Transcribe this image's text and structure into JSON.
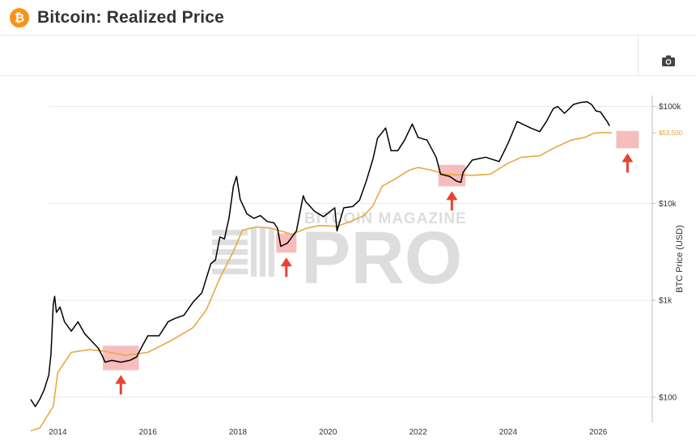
{
  "header": {
    "title": "Bitcoin: Realized Price",
    "logo_glyph": "₿",
    "logo_color": "#f7931a"
  },
  "toolbar": {
    "camera_icon": "camera-icon"
  },
  "watermark": {
    "line1": "BITCOIN MAGAZINE",
    "line2": "PRO"
  },
  "chart_data": {
    "type": "line",
    "yscale": "log",
    "ylabel": "BTC Price (USD)",
    "ylim": [
      55,
      130000
    ],
    "xlim": [
      2013.4,
      2027.2
    ],
    "x_ticks": [
      "2014",
      "2016",
      "2018",
      "2020",
      "2022",
      "2024",
      "2026"
    ],
    "y_ticks": [
      "$100",
      "$1k",
      "$10k",
      "$100k"
    ],
    "grid": true,
    "realized_price_label": "$53,500",
    "colors": {
      "price": "#000000",
      "realized": "#e8a845",
      "highlight": "#f4a7a7",
      "arrow": "#e8432f"
    },
    "series": [
      {
        "key": "price",
        "x": [
          2013.4,
          2013.5,
          2013.6,
          2013.7,
          2013.8,
          2013.85,
          2013.9,
          2013.93,
          2013.97,
          2014.05,
          2014.15,
          2014.3,
          2014.45,
          2014.6,
          2014.75,
          2014.9,
          2015.0,
          2015.05,
          2015.2,
          2015.4,
          2015.6,
          2015.75,
          2015.85,
          2016.0,
          2016.25,
          2016.45,
          2016.6,
          2016.8,
          2017.0,
          2017.2,
          2017.4,
          2017.5,
          2017.6,
          2017.7,
          2017.8,
          2017.9,
          2017.97,
          2018.05,
          2018.2,
          2018.35,
          2018.5,
          2018.65,
          2018.8,
          2018.88,
          2018.95,
          2019.1,
          2019.3,
          2019.45,
          2019.5,
          2019.7,
          2019.9,
          2020.15,
          2020.2,
          2020.35,
          2020.55,
          2020.7,
          2020.85,
          2021.0,
          2021.1,
          2021.28,
          2021.4,
          2021.55,
          2021.7,
          2021.87,
          2022.0,
          2022.2,
          2022.4,
          2022.5,
          2022.7,
          2022.85,
          2022.95,
          2023.0,
          2023.2,
          2023.5,
          2023.8,
          2024.0,
          2024.2,
          2024.5,
          2024.7,
          2024.85,
          2025.0,
          2025.1,
          2025.25,
          2025.45,
          2025.6,
          2025.75,
          2025.85,
          2025.95,
          2026.05,
          2026.15,
          2026.2,
          2026.25
        ],
        "y": [
          95,
          80,
          95,
          120,
          170,
          280,
          900,
          1100,
          750,
          850,
          600,
          480,
          600,
          450,
          380,
          320,
          260,
          230,
          240,
          230,
          240,
          260,
          320,
          430,
          430,
          600,
          650,
          700,
          950,
          1200,
          2400,
          2600,
          4500,
          4300,
          7000,
          15000,
          19000,
          11000,
          7800,
          7000,
          7500,
          6500,
          6300,
          5500,
          3600,
          3900,
          5200,
          12000,
          10500,
          8300,
          7300,
          9000,
          5200,
          9000,
          9300,
          10800,
          17000,
          29000,
          47000,
          60000,
          35000,
          35000,
          45000,
          66000,
          48000,
          45000,
          30000,
          20000,
          19000,
          17000,
          16500,
          21000,
          28000,
          30000,
          27000,
          42000,
          70000,
          60000,
          55000,
          70000,
          95000,
          100000,
          85000,
          105000,
          110000,
          112000,
          105000,
          90000,
          88000,
          75000,
          70000,
          63000
        ]
      },
      {
        "key": "realized",
        "x": [
          2013.4,
          2013.6,
          2013.9,
          2014.0,
          2014.3,
          2014.7,
          2015.0,
          2015.5,
          2016.0,
          2016.5,
          2017.0,
          2017.3,
          2017.6,
          2017.9,
          2018.1,
          2018.4,
          2018.7,
          2018.95,
          2019.2,
          2019.5,
          2019.8,
          2020.2,
          2020.5,
          2020.8,
          2021.0,
          2021.2,
          2021.5,
          2021.8,
          2022.0,
          2022.3,
          2022.6,
          2022.9,
          2023.2,
          2023.6,
          2024.0,
          2024.3,
          2024.7,
          2025.0,
          2025.4,
          2025.7,
          2025.9,
          2026.1,
          2026.3
        ],
        "y": [
          45,
          48,
          80,
          180,
          290,
          310,
          300,
          270,
          290,
          380,
          520,
          800,
          1700,
          3200,
          5300,
          5700,
          5600,
          5200,
          4800,
          5500,
          5900,
          5800,
          6500,
          7500,
          9500,
          15000,
          18000,
          22000,
          23500,
          22000,
          20000,
          19700,
          19500,
          20000,
          26000,
          30000,
          31000,
          37000,
          45000,
          48000,
          53000,
          54000,
          53500
        ]
      }
    ],
    "highlights": [
      {
        "x0": 2015.0,
        "x1": 2015.8,
        "y0": 190,
        "y1": 340
      },
      {
        "x0": 2018.85,
        "x1": 2019.3,
        "y0": 3100,
        "y1": 4900
      },
      {
        "x0": 2022.45,
        "x1": 2023.05,
        "y0": 15000,
        "y1": 25000
      },
      {
        "x0": 2026.4,
        "x1": 2026.9,
        "y0": 37000,
        "y1": 56000
      }
    ]
  }
}
